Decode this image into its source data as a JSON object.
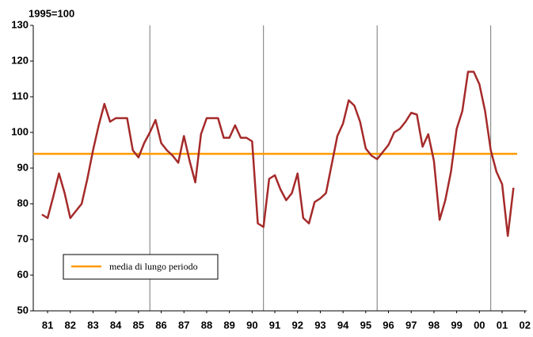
{
  "chart_data": {
    "type": "line",
    "subtitle": "1995=100",
    "x": [
      1981.25,
      1981.5,
      1981.75,
      1982,
      1982.25,
      1982.5,
      1982.75,
      1983,
      1983.25,
      1983.5,
      1983.75,
      1984,
      1984.25,
      1984.5,
      1984.75,
      1985,
      1985.25,
      1985.5,
      1985.75,
      1986,
      1986.25,
      1986.5,
      1986.75,
      1987,
      1987.25,
      1987.5,
      1987.75,
      1988,
      1988.25,
      1988.5,
      1988.75,
      1989,
      1989.25,
      1989.5,
      1989.75,
      1990,
      1990.25,
      1990.5,
      1990.75,
      1991,
      1991.25,
      1991.5,
      1991.75,
      1992,
      1992.25,
      1992.5,
      1992.75,
      1993,
      1993.25,
      1993.5,
      1993.75,
      1994,
      1994.25,
      1994.5,
      1994.75,
      1995,
      1995.25,
      1995.5,
      1995.75,
      1996,
      1996.25,
      1996.5,
      1996.75,
      1997,
      1997.25,
      1997.5,
      1997.75,
      1998,
      1998.25,
      1998.5,
      1998.75,
      1999,
      1999.25,
      1999.5,
      1999.75,
      2000,
      2000.25,
      2000.5,
      2000.75,
      2001,
      2001.25,
      2001.5,
      2001.75,
      2002
    ],
    "series": [
      {
        "color": "#a52a2a",
        "values": [
          77,
          76,
          82,
          88.5,
          83,
          76,
          78,
          80,
          87,
          95,
          102,
          108,
          103,
          104,
          104,
          104,
          95,
          93,
          97,
          100,
          103.5,
          97,
          95,
          93.5,
          91.5,
          99,
          92,
          86,
          99.5,
          104,
          104,
          104,
          98.5,
          98.5,
          102,
          98.5,
          98.5,
          97.5,
          74.5,
          73.5,
          87,
          88,
          84,
          81,
          83,
          88.5,
          76,
          74.5,
          80.5,
          81.5,
          83,
          91,
          99,
          102.5,
          109,
          107.5,
          103,
          95.5,
          93.5,
          92.5,
          94.5,
          96.5,
          100,
          101,
          103,
          105.5,
          105,
          96,
          99.5,
          92,
          75.5,
          81,
          89,
          101,
          106,
          117,
          117,
          113.5,
          106,
          95,
          89,
          85.5,
          71,
          84.5
        ]
      }
    ],
    "hlines": [
      {
        "name": "media di lungo periodo",
        "value": 94,
        "color": "#ff9900"
      }
    ],
    "vlines": [
      1986,
      1991,
      1996,
      2001
    ],
    "xlim": [
      1980.87,
      2002.58
    ],
    "xticks": [
      {
        "value": 1981.5,
        "label": "81"
      },
      {
        "value": 1982.5,
        "label": "82"
      },
      {
        "value": 1983.5,
        "label": "83"
      },
      {
        "value": 1984.5,
        "label": "84"
      },
      {
        "value": 1985.5,
        "label": "85"
      },
      {
        "value": 1986.5,
        "label": "86"
      },
      {
        "value": 1987.5,
        "label": "87"
      },
      {
        "value": 1988.5,
        "label": "88"
      },
      {
        "value": 1989.5,
        "label": "89"
      },
      {
        "value": 1990.5,
        "label": "90"
      },
      {
        "value": 1991.5,
        "label": "91"
      },
      {
        "value": 1992.5,
        "label": "92"
      },
      {
        "value": 1993.5,
        "label": "93"
      },
      {
        "value": 1994.5,
        "label": "94"
      },
      {
        "value": 1995.5,
        "label": "95"
      },
      {
        "value": 1996.5,
        "label": "96"
      },
      {
        "value": 1997.5,
        "label": "97"
      },
      {
        "value": 1998.5,
        "label": "98"
      },
      {
        "value": 1999.5,
        "label": "99"
      },
      {
        "value": 2000.5,
        "label": "00"
      },
      {
        "value": 2001.5,
        "label": "01"
      },
      {
        "value": 2002.5,
        "label": "02"
      }
    ],
    "ylim": [
      50,
      130
    ],
    "yticks": [
      50,
      60,
      70,
      80,
      90,
      100,
      110,
      120,
      130
    ],
    "grid": false
  }
}
